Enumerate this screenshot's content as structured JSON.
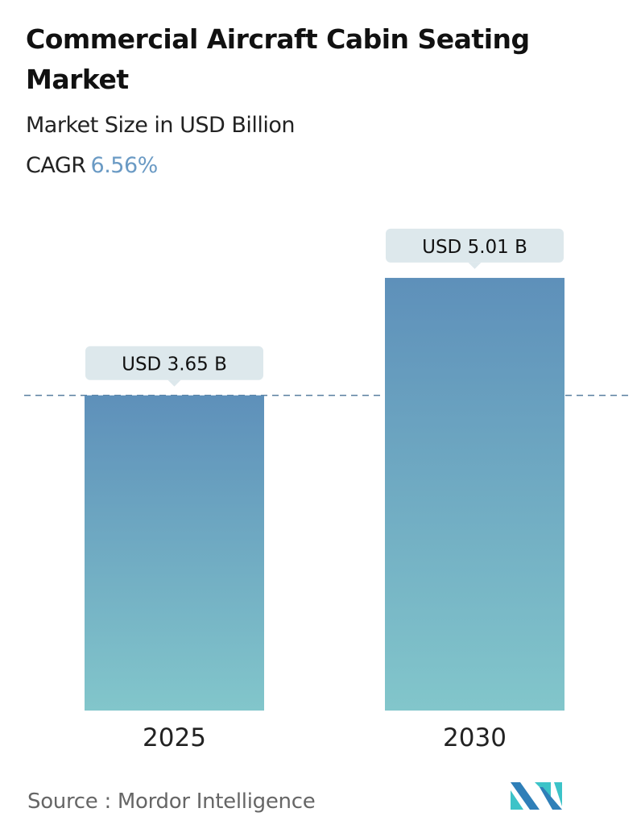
{
  "title": "Commercial Aircraft Cabin Seating Market",
  "subtitle": "Market Size in USD Billion",
  "cagr_label": "CAGR",
  "cagr_value": "6.56%",
  "source": "Source :  Mordor Intelligence",
  "logo_text": "Mordor Intelligence",
  "colors": {
    "bar_top": "#5e90ba",
    "bar_bottom": "#82c6cb",
    "callout": "#dde8ec",
    "cagr": "#6a9ac4",
    "dashed": "#5a7fa0"
  },
  "chart_data": {
    "type": "bar",
    "categories": [
      "2025",
      "2030"
    ],
    "values": [
      3.65,
      5.01
    ],
    "data_labels": [
      "USD 3.65 B",
      "USD 5.01 B"
    ],
    "title": "Commercial Aircraft Cabin Seating Market",
    "ylabel": "Market Size in USD Billion",
    "reference_line": 3.65,
    "grid": false
  }
}
